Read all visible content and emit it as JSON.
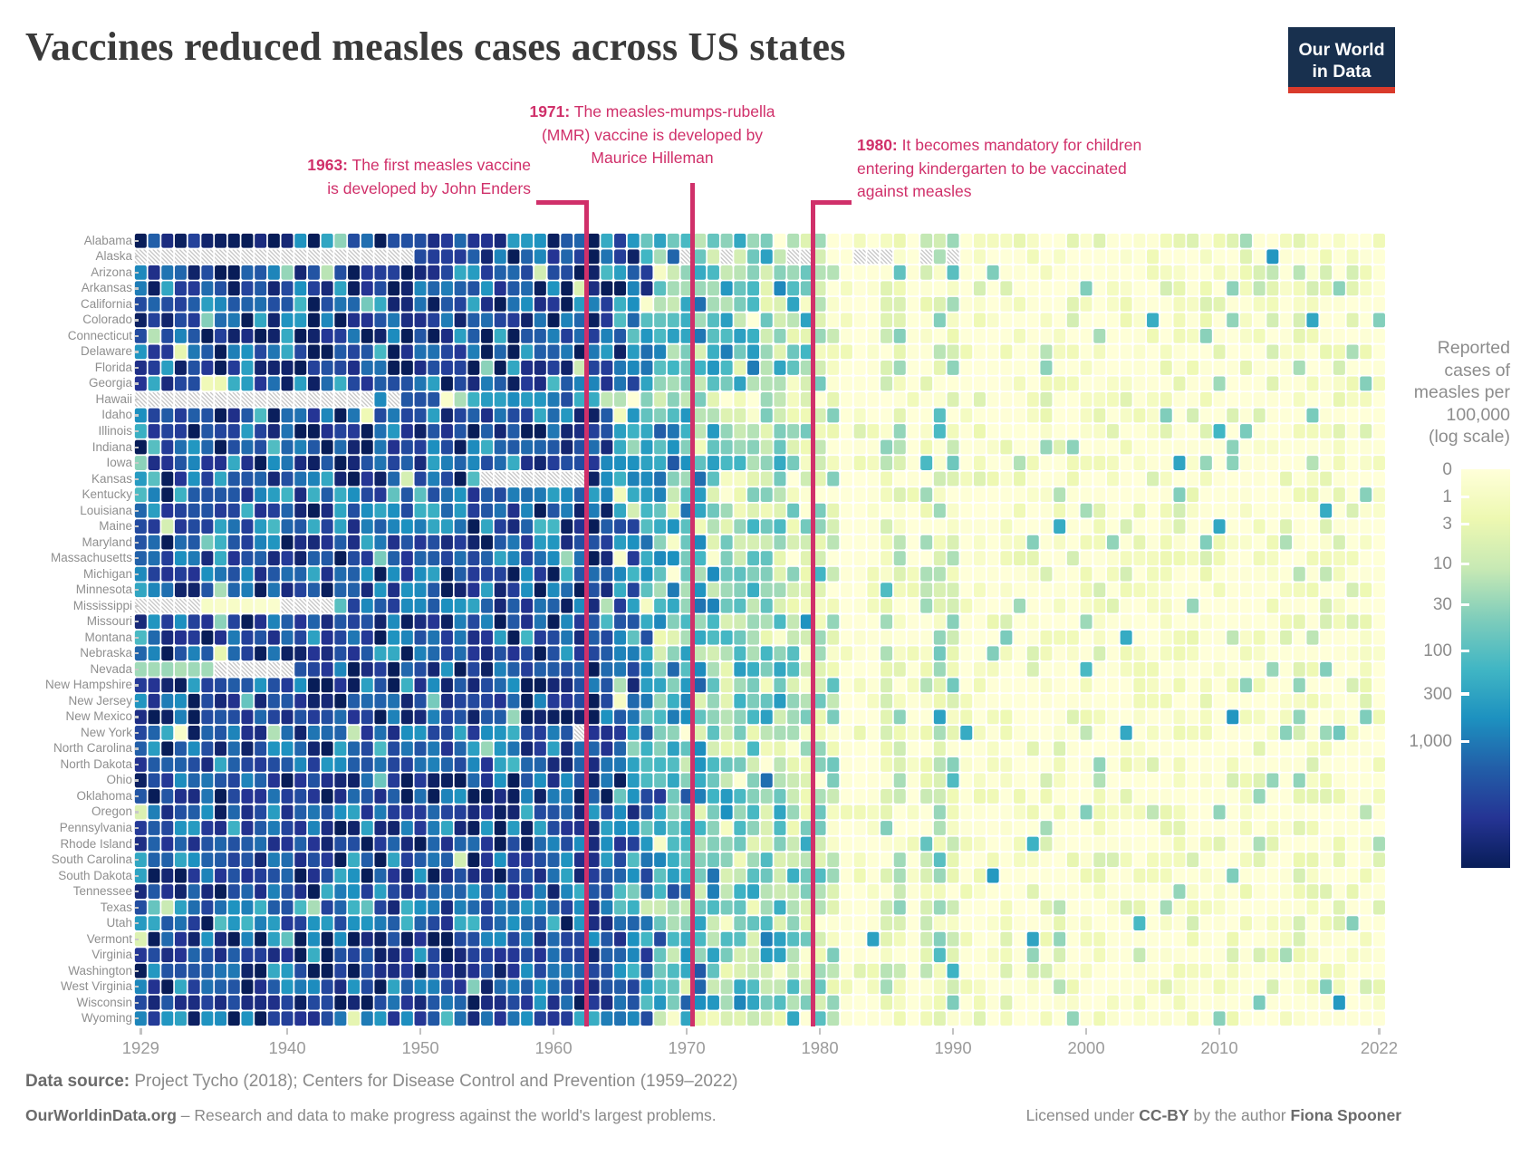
{
  "title": "Vaccines reduced measles cases across US states",
  "logo": {
    "line1": "Our World",
    "line2": "in Data"
  },
  "colors": {
    "annotation_pink": "#d0306a",
    "logo_navy": "#18304e",
    "logo_red": "#d93a2b",
    "no_data_hatch": "#c8c8c8"
  },
  "annotations": {
    "ann1963": {
      "bold": "1963:",
      "l1": " The first measles vaccine",
      "l2": "is developed by John Enders",
      "year": 1963
    },
    "ann1971": {
      "bold": "1971:",
      "l1": " The measles-mumps-rubella",
      "l2": "(MMR) vaccine is developed by",
      "l3": "Maurice Hilleman",
      "year": 1971
    },
    "ann1980": {
      "bold": "1980:",
      "l1": " It becomes mandatory for children",
      "l2": "entering kindergarten to be vaccinated",
      "l3": "against measles",
      "year": 1980
    }
  },
  "chart_data": {
    "type": "heatmap",
    "x_start": 1929,
    "x_end": 2022,
    "x_ticks": [
      1929,
      1940,
      1950,
      1960,
      1970,
      1980,
      1990,
      2000,
      2010,
      2022
    ],
    "states": [
      "Alabama",
      "Alaska",
      "Arizona",
      "Arkansas",
      "California",
      "Colorado",
      "Connecticut",
      "Delaware",
      "Florida",
      "Georgia",
      "Hawaii",
      "Idaho",
      "Illinois",
      "Indiana",
      "Iowa",
      "Kansas",
      "Kentucky",
      "Louisiana",
      "Maine",
      "Maryland",
      "Massachusetts",
      "Michigan",
      "Minnesota",
      "Mississippi",
      "Missouri",
      "Montana",
      "Nebraska",
      "Nevada",
      "New Hampshire",
      "New Jersey",
      "New Mexico",
      "New York",
      "North Carolina",
      "North Dakota",
      "Ohio",
      "Oklahoma",
      "Oregon",
      "Pennsylvania",
      "Rhode Island",
      "South Carolina",
      "South Dakota",
      "Tennessee",
      "Texas",
      "Utah",
      "Vermont",
      "Virginia",
      "Washington",
      "West Virginia",
      "Wisconsin",
      "Wyoming"
    ],
    "colorbar": {
      "title_lines": [
        "Reported",
        "cases of",
        "measles per",
        "100,000",
        "(log scale)"
      ],
      "tick_labels": [
        "0",
        "1",
        "3",
        "10",
        "30",
        "100",
        "300",
        "1,000"
      ],
      "tick_values": [
        0,
        1,
        3,
        10,
        30,
        100,
        300,
        1000
      ],
      "log_scale_divisor": 4.4,
      "stops": [
        [
          0,
          "#ffffd9"
        ],
        [
          0.125,
          "#edf8b1"
        ],
        [
          0.25,
          "#c7e9b4"
        ],
        [
          0.375,
          "#7fcdbb"
        ],
        [
          0.5,
          "#41b6c4"
        ],
        [
          0.625,
          "#1d91c0"
        ],
        [
          0.75,
          "#225ea8"
        ],
        [
          0.875,
          "#253494"
        ],
        [
          1,
          "#081d58"
        ]
      ]
    },
    "yearly_mean_log10_approx": [
      3.55,
      3.55,
      3.55,
      3.55,
      3.55,
      3.55,
      3.55,
      3.55,
      3.55,
      3.55,
      3.55,
      3.55,
      3.55,
      3.55,
      3.55,
      3.55,
      3.55,
      3.55,
      3.55,
      3.55,
      3.55,
      3.55,
      3.55,
      3.55,
      3.55,
      3.55,
      3.55,
      3.55,
      3.55,
      3.55,
      3.55,
      3.55,
      3.55,
      3.55,
      3.55,
      3.3,
      3.1,
      2.9,
      2.6,
      2.3,
      2.1,
      2.0,
      1.95,
      1.7,
      1.55,
      1.6,
      1.5,
      1.55,
      1.6,
      1.3,
      1.1,
      0.95,
      0.65,
      0.4,
      0.35,
      0.45,
      0.6,
      0.65,
      0.45,
      0.5,
      0.9,
      0.85,
      0.4,
      0.15,
      0.08,
      0.08,
      0.03,
      0.03,
      0.03,
      0.03,
      0.03,
      0.03,
      0.03,
      0.03,
      0.03,
      0.03,
      0.03,
      0.03,
      0.03,
      0.03,
      0.03,
      0.03,
      0.03,
      0.03,
      0.03,
      0.03,
      0.03,
      0.03,
      0.03,
      0.03,
      0.03,
      0.03,
      0.03,
      0.03
    ],
    "no_data": [
      {
        "state": "Alaska",
        "ranges": [
          [
            1929,
            1949
          ],
          [
            1970,
            1970
          ],
          [
            1973,
            1973
          ],
          [
            1978,
            1979
          ],
          [
            1983,
            1985
          ],
          [
            1988,
            1988
          ],
          [
            1990,
            1990
          ]
        ]
      },
      {
        "state": "Hawaii",
        "ranges": [
          [
            1929,
            1946
          ],
          [
            1948,
            1948
          ]
        ]
      },
      {
        "state": "Mississippi",
        "ranges": [
          [
            1929,
            1933
          ],
          [
            1940,
            1943
          ]
        ]
      },
      {
        "state": "Nevada",
        "ranges": [
          [
            1935,
            1940
          ]
        ]
      },
      {
        "state": "Kansas",
        "ranges": [
          [
            1955,
            1962
          ]
        ]
      },
      {
        "state": "New York",
        "ranges": [
          [
            1962,
            1962
          ]
        ]
      }
    ],
    "special_runs": [
      {
        "state": "Mississippi",
        "from": 1934,
        "to": 1939,
        "log10": -0.2
      },
      {
        "state": "Nevada",
        "from": 1929,
        "to": 1934,
        "log10": 1.3
      },
      {
        "state": "Georgia",
        "from": 1934,
        "to": 1935,
        "log10": 0.4
      }
    ],
    "special_cells": [
      {
        "state": "New York",
        "year": 2019,
        "value": 60
      },
      {
        "state": "Ohio",
        "year": 2014,
        "value": 30
      }
    ],
    "state_offsets": {
      "Hawaii": -0.9,
      "Texas": -0.35,
      "Kentucky": -0.3,
      "Louisiana": -0.25,
      "Wisconsin": 0.3,
      "Massachusetts": 0.2,
      "Connecticut": 0.2
    }
  },
  "footer": {
    "source_label": "Data source:",
    "source_text": " Project Tycho (2018); Centers for Disease Control and Prevention (1959–2022)",
    "owid": "OurWorldinData.org",
    "tagline": " – Research and data to make progress against the world's largest problems.",
    "license_prefix": "Licensed under ",
    "license_bold1": "CC-BY",
    "license_mid": " by the author ",
    "license_bold2": "Fiona Spooner"
  }
}
